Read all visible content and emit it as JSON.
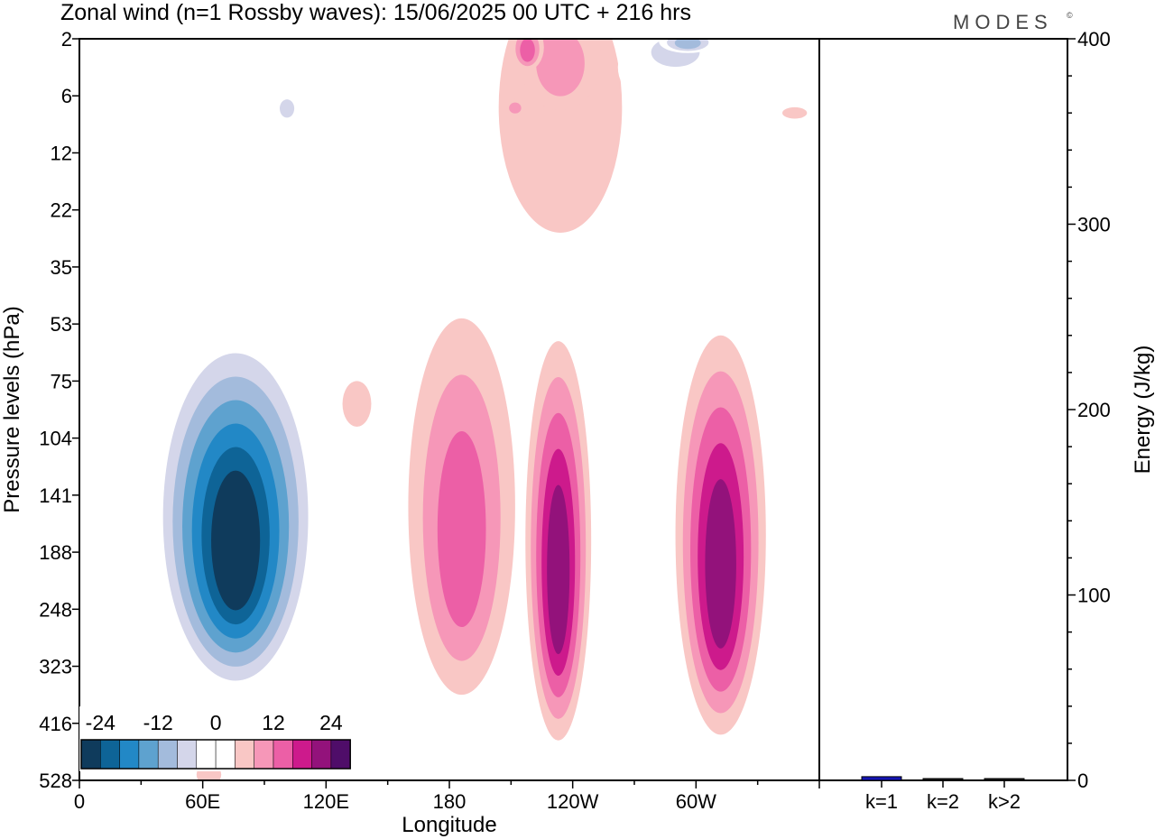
{
  "chart_data": {
    "type": "filled-contour-with-bar",
    "title": "Zonal wind (n=1 Rossby waves):  15/06/2025  00 UTC  + 216 hrs",
    "brand": "MODES",
    "brand_mark": "©",
    "contour_panel": {
      "xlabel": "Longitude",
      "ylabel": "Pressure levels (hPa)",
      "x_ticks": [
        {
          "lon": 0,
          "label": "0"
        },
        {
          "lon": 60,
          "label": "60E"
        },
        {
          "lon": 120,
          "label": "120E"
        },
        {
          "lon": 180,
          "label": "180"
        },
        {
          "lon": 240,
          "label": "120W"
        },
        {
          "lon": 300,
          "label": "60W"
        }
      ],
      "xlim": [
        0,
        360
      ],
      "y_levels": [
        "2",
        "6",
        "12",
        "22",
        "35",
        "53",
        "75",
        "104",
        "141",
        "188",
        "248",
        "323",
        "416",
        "528"
      ],
      "contour_levels": [
        -28,
        -24,
        -20,
        -16,
        -12,
        -8,
        -4,
        0,
        4,
        8,
        12,
        16,
        20,
        24
      ],
      "features": [
        {
          "name": "strat-neg-a",
          "value": -4,
          "lon": 45,
          "lev": 2.4,
          "rx": 18,
          "ry": 1.1
        },
        {
          "name": "strat-neg-b",
          "value": -4,
          "lon": 80,
          "lev": 2.2,
          "rx": 28,
          "ry": 1.7
        },
        {
          "name": "strat-neg-b-core",
          "value": -8,
          "lon": 101,
          "lev": 1.2,
          "rx": 6,
          "ry": 0.25
        },
        {
          "name": "strat-pos",
          "value": 4,
          "lon": 234,
          "lev": 1.2,
          "rx": 30,
          "ry": 2.2
        },
        {
          "name": "strat-pos-l2",
          "value": 8,
          "lon": 234,
          "lev": 0.35,
          "rx": 20,
          "ry": 0.9
        },
        {
          "name": "strat-pos-l3",
          "value": 12,
          "lon": 218,
          "lev": 0.15,
          "rx": 8,
          "ry": 0.4
        },
        {
          "name": "strat-pos-blob",
          "value": 8,
          "lon": 212,
          "lev": 1.2,
          "rx": 5,
          "ry": 0.15
        },
        {
          "name": "strat-neg-c",
          "value": -4,
          "lon": 292,
          "lev": 0.5,
          "rx": 30,
          "ry": 0.8
        },
        {
          "name": "strat-neg-c-l2",
          "value": -8,
          "lon": 290,
          "lev": 0.2,
          "rx": 20,
          "ry": 0.4
        },
        {
          "name": "strat-neg-c-l3",
          "value": -12,
          "lon": 296,
          "lev": 0.05,
          "rx": 14,
          "ry": 0.2
        },
        {
          "name": "strat-pos-small",
          "value": 4,
          "lon": 348,
          "lev": 1.3,
          "rx": 6,
          "ry": 0.1
        },
        {
          "name": "trop-neg",
          "value": -28,
          "lon": 76,
          "lev": 8.3,
          "rx": 40,
          "ry": 3.2
        },
        {
          "name": "trop-pos-a",
          "value": 12,
          "lon": 186,
          "lev": 8.2,
          "rx": 26,
          "ry": 3.3
        },
        {
          "name": "trop-pos-b",
          "value": 20,
          "lon": 233,
          "lev": 8.8,
          "rx": 16,
          "ry": 3.5
        },
        {
          "name": "trop-pos-c",
          "value": 20,
          "lon": 312,
          "lev": 8.7,
          "rx": 22,
          "ry": 3.5
        },
        {
          "name": "trop-pos-small",
          "value": 4,
          "lon": 135,
          "lev": 6.4,
          "rx": 7,
          "ry": 0.4
        },
        {
          "name": "trop-neg-east",
          "value": -4,
          "lon": 370,
          "lev": 6.5,
          "rx": 20,
          "ry": 0.9
        },
        {
          "name": "low-neg-a",
          "value": -4,
          "lon": 254,
          "lev": 10.1,
          "rx": 2.5,
          "ry": 0.6
        },
        {
          "name": "low-neg-b",
          "value": -4,
          "lon": 253,
          "lev": 12.5,
          "rx": 4,
          "ry": 0.9
        },
        {
          "name": "low-neg-c",
          "value": -4,
          "lon": 343,
          "lev": 11.8,
          "rx": 6,
          "ry": 1.7
        },
        {
          "name": "low-pos",
          "value": 4,
          "lon": 63,
          "lev": 12.9,
          "rx": 6,
          "ry": 0.2
        }
      ]
    },
    "bar_panel": {
      "ylabel": "Energy (J/kg)",
      "ylim": [
        0,
        400
      ],
      "y_ticks": [
        "0",
        "100",
        "200",
        "300",
        "400"
      ],
      "categories": [
        "k=1",
        "k=2",
        "k>2"
      ],
      "values": [
        2,
        0.5,
        0.5
      ],
      "bar_colors": [
        "#1414b4",
        "#1a1a1a",
        "#1a1a1a"
      ]
    },
    "colorbar": {
      "labels": [
        "-24",
        "-12",
        "0",
        "12",
        "24"
      ],
      "label_values": [
        -24,
        -12,
        0,
        12,
        24
      ],
      "colors": [
        "#0f3b5c",
        "#0e6497",
        "#2288c6",
        "#5ea2cf",
        "#a3bbdc",
        "#d4d6ea",
        "#ffffff",
        "#ffffff",
        "#f9c7c5",
        "#f697b8",
        "#ec5fa6",
        "#cd1a8c",
        "#93127b",
        "#4f0d69"
      ]
    }
  }
}
